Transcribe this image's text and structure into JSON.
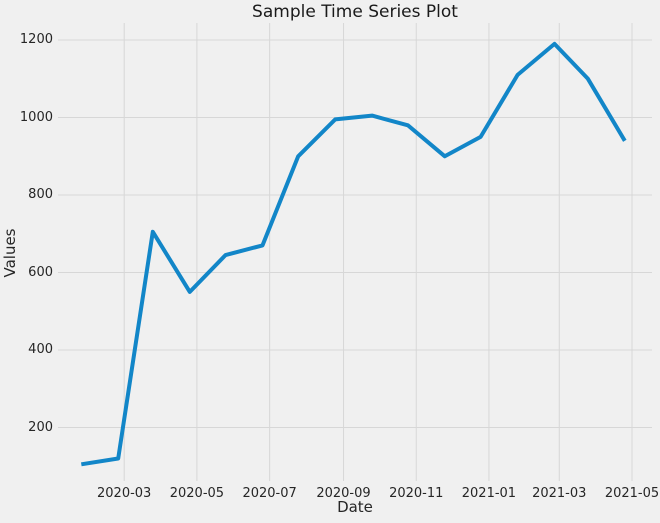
{
  "figure": {
    "title": "Sample Time Series Plot",
    "background_color": "#f0f0f0",
    "grid_color": "#d7d7d7",
    "text_color": "#262626",
    "accent_line_color": "#1286c8"
  },
  "chart_data": {
    "type": "line",
    "title": "Sample Time Series Plot",
    "xlabel": "Date",
    "ylabel": "Values",
    "x": [
      "2020-01",
      "2020-02",
      "2020-03",
      "2020-04",
      "2020-05",
      "2020-06",
      "2020-07",
      "2020-08",
      "2020-09",
      "2020-10",
      "2020-11",
      "2020-12",
      "2021-01",
      "2021-02",
      "2021-03",
      "2021-04"
    ],
    "values": [
      105,
      120,
      705,
      550,
      645,
      670,
      900,
      995,
      1005,
      980,
      900,
      950,
      1110,
      1190,
      1100,
      940
    ],
    "series_name": "Values",
    "x_tick_labels": [
      "2020-03",
      "2020-05",
      "2020-07",
      "2020-09",
      "2020-11",
      "2021-01",
      "2021-03",
      "2021-05"
    ],
    "y_tick_labels": [
      "200",
      "400",
      "600",
      "800",
      "1000",
      "1200"
    ],
    "y_ticks": [
      200,
      400,
      600,
      800,
      1000,
      1200
    ],
    "ylim": [
      62,
      1243
    ],
    "grid": true,
    "legend_position": "none",
    "line_color": "#1286c8",
    "line_width": 4
  }
}
